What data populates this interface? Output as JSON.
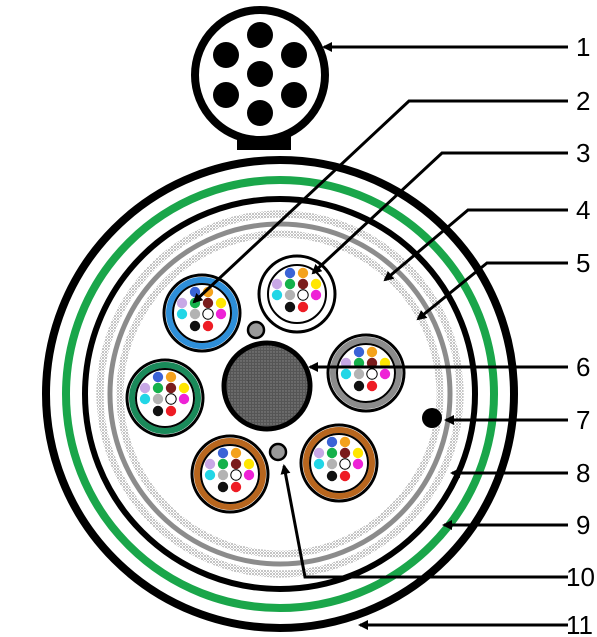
{
  "colors": {
    "sheath": "#000000",
    "green_band": "#1aa64a",
    "gray_band": "#8c8c8c",
    "dotted_band": "#b8b8b8",
    "core_fill": "#4d4d4d",
    "fiber_palette": [
      "#3a63d6",
      "#f4a21c",
      "#c8a8e6",
      "#15b14b",
      "#7a1c1c",
      "#ffe600",
      "#22d6e6",
      "#b3b3b3",
      "#ffffff",
      "#ee22d6",
      "#111111",
      "#ee1c24"
    ]
  },
  "tubes": [
    {
      "name": "blue",
      "color": "#2e8fd9"
    },
    {
      "name": "white",
      "color": "#ffffff"
    },
    {
      "name": "gray",
      "color": "#8c8c8c"
    },
    {
      "name": "brown",
      "color": "#b8661e"
    },
    {
      "name": "brown-2",
      "color": "#b8661e"
    },
    {
      "name": "green",
      "color": "#1a8a5a"
    }
  ],
  "callouts": [
    {
      "label": "1"
    },
    {
      "label": "2"
    },
    {
      "label": "3"
    },
    {
      "label": "4"
    },
    {
      "label": "5"
    },
    {
      "label": "6"
    },
    {
      "label": "7"
    },
    {
      "label": "8"
    },
    {
      "label": "9"
    },
    {
      "label": "10"
    },
    {
      "label": "11"
    }
  ]
}
